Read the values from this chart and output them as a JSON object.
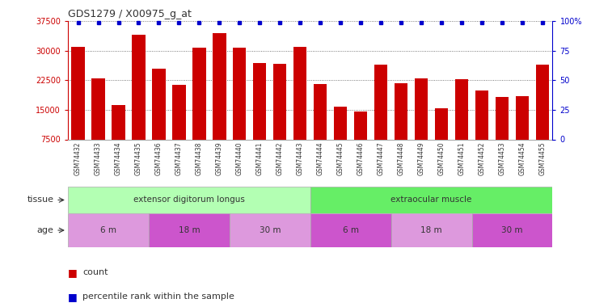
{
  "title": "GDS1279 / X00975_g_at",
  "samples": [
    "GSM74432",
    "GSM74433",
    "GSM74434",
    "GSM74435",
    "GSM74436",
    "GSM74437",
    "GSM74438",
    "GSM74439",
    "GSM74440",
    "GSM74441",
    "GSM74442",
    "GSM74443",
    "GSM74444",
    "GSM74445",
    "GSM74446",
    "GSM74447",
    "GSM74448",
    "GSM74449",
    "GSM74450",
    "GSM74451",
    "GSM74452",
    "GSM74453",
    "GSM74454",
    "GSM74455"
  ],
  "counts": [
    31000,
    23000,
    16200,
    34000,
    25500,
    21400,
    30800,
    34500,
    30800,
    26800,
    26600,
    30900,
    21500,
    15900,
    14500,
    26500,
    21700,
    23000,
    15400,
    22700,
    20000,
    18200,
    18500,
    26500
  ],
  "bar_color": "#cc0000",
  "dot_color": "#0000cc",
  "ylim_left": [
    7500,
    37500
  ],
  "yticks_left": [
    7500,
    15000,
    22500,
    30000,
    37500
  ],
  "ylim_right": [
    0,
    100
  ],
  "yticks_right": [
    0,
    25,
    50,
    75,
    100
  ],
  "tissue_groups": [
    {
      "label": "extensor digitorum longus",
      "start": 0,
      "end": 12,
      "color": "#b3ffb3"
    },
    {
      "label": "extraocular muscle",
      "start": 12,
      "end": 24,
      "color": "#66ee66"
    }
  ],
  "age_groups": [
    {
      "label": "6 m",
      "start": 0,
      "end": 4,
      "color": "#dd99dd"
    },
    {
      "label": "18 m",
      "start": 4,
      "end": 8,
      "color": "#cc55cc"
    },
    {
      "label": "30 m",
      "start": 8,
      "end": 12,
      "color": "#dd99dd"
    },
    {
      "label": "6 m",
      "start": 12,
      "end": 16,
      "color": "#cc55cc"
    },
    {
      "label": "18 m",
      "start": 16,
      "end": 20,
      "color": "#dd99dd"
    },
    {
      "label": "30 m",
      "start": 20,
      "end": 24,
      "color": "#cc55cc"
    }
  ],
  "tissue_label": "tissue",
  "age_label": "age",
  "legend_count_label": "count",
  "legend_percentile_label": "percentile rank within the sample",
  "background_color": "#ffffff"
}
